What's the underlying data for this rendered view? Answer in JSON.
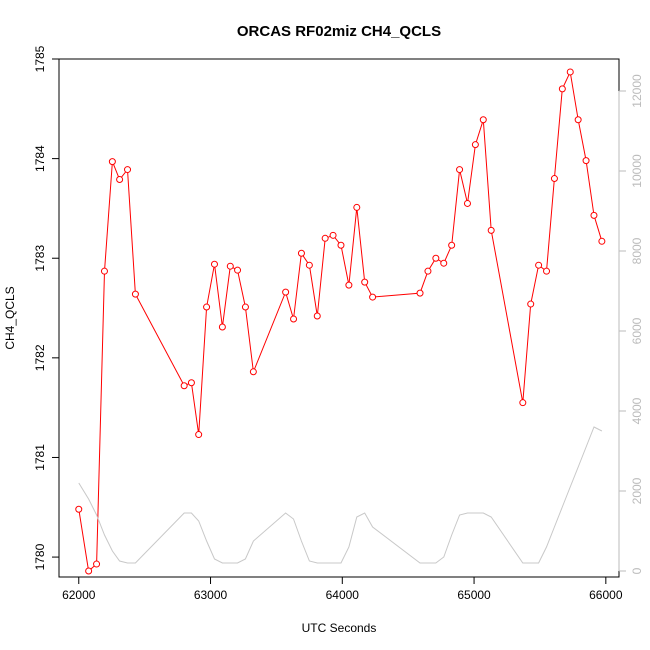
{
  "chart_data": {
    "type": "line",
    "title": "ORCAS RF02miz CH4_QCLS",
    "xlabel": "UTC Seconds",
    "ylabel": "CH4_QCLS",
    "xlim": [
      61850,
      66100
    ],
    "ylim": [
      1779.8,
      1785.0
    ],
    "ylim_right": [
      -150,
      12800
    ],
    "x_ticks": [
      62000,
      63000,
      64000,
      65000,
      66000
    ],
    "y_ticks": [
      1780,
      1781,
      1782,
      1783,
      1784,
      1785
    ],
    "y_ticks_right": [
      0,
      2000,
      4000,
      6000,
      8000,
      10000,
      12000
    ],
    "grid": false,
    "colors": {
      "primary": "#ff0000",
      "secondary": "#c8c8c8"
    },
    "series": [
      {
        "axis": "left",
        "style": "line+open-circle",
        "x": [
          62000,
          62075,
          62135,
          62195,
          62255,
          62310,
          62370,
          62430,
          62800,
          62855,
          62910,
          62970,
          63030,
          63090,
          63150,
          63205,
          63265,
          63325,
          63570,
          63630,
          63690,
          63750,
          63810,
          63870,
          63930,
          63990,
          64050,
          64110,
          64170,
          64230,
          64590,
          64650,
          64710,
          64770,
          64830,
          64890,
          64950,
          65010,
          65070,
          65130,
          65370,
          65430,
          65490,
          65550,
          65610,
          65670,
          65730,
          65790,
          65850,
          65910,
          65970
        ],
        "values": [
          1780.48,
          1779.86,
          1779.93,
          1782.87,
          1783.97,
          1783.79,
          1783.89,
          1782.64,
          1781.72,
          1781.75,
          1781.23,
          1782.51,
          1782.94,
          1782.31,
          1782.92,
          1782.88,
          1782.51,
          1781.86,
          1782.66,
          1782.39,
          1783.05,
          1782.93,
          1782.42,
          1783.2,
          1783.23,
          1783.13,
          1782.73,
          1783.51,
          1782.76,
          1782.61,
          1782.65,
          1782.87,
          1783.0,
          1782.95,
          1783.13,
          1783.89,
          1783.55,
          1784.14,
          1784.39,
          1783.28,
          1781.55,
          1782.54,
          1782.93,
          1782.87,
          1783.8,
          1784.7,
          1784.87,
          1784.39,
          1783.98,
          1783.43,
          1783.17
        ]
      },
      {
        "axis": "right",
        "style": "line",
        "x": [
          62000,
          62075,
          62135,
          62195,
          62255,
          62310,
          62370,
          62430,
          62800,
          62855,
          62910,
          62970,
          63030,
          63090,
          63150,
          63205,
          63265,
          63325,
          63570,
          63630,
          63690,
          63750,
          63810,
          63870,
          63930,
          63990,
          64050,
          64110,
          64170,
          64230,
          64590,
          64650,
          64710,
          64770,
          64830,
          64890,
          64950,
          65010,
          65070,
          65130,
          65370,
          65430,
          65490,
          65550,
          65610,
          65670,
          65730,
          65790,
          65850,
          65910,
          65970
        ],
        "values": [
          2200,
          1800,
          1400,
          900,
          500,
          250,
          200,
          200,
          1450,
          1450,
          1250,
          750,
          300,
          200,
          200,
          200,
          300,
          750,
          1450,
          1300,
          750,
          250,
          200,
          200,
          200,
          200,
          600,
          1350,
          1450,
          1100,
          200,
          200,
          200,
          350,
          900,
          1400,
          1450,
          1450,
          1450,
          1350,
          200,
          200,
          200,
          600,
          1100,
          1600,
          2100,
          2600,
          3100,
          3600,
          3500
        ]
      }
    ]
  }
}
